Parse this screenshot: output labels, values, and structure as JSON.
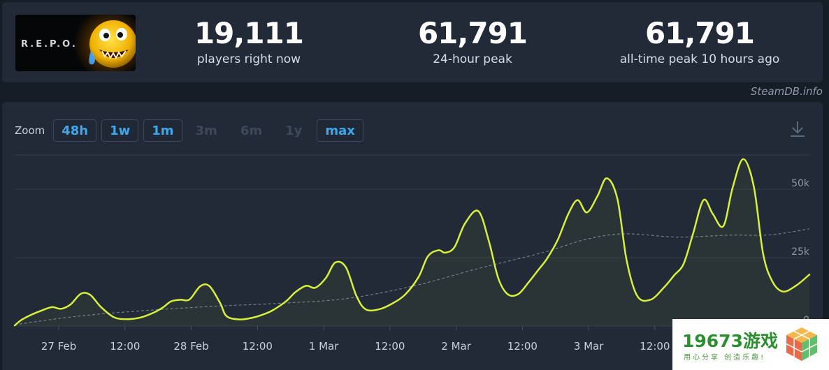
{
  "game": {
    "logo_text": "R.E.P.O."
  },
  "stats": [
    {
      "value": "19,111",
      "label": "players right now"
    },
    {
      "value": "61,791",
      "label": "24-hour peak"
    },
    {
      "value": "61,791",
      "label": "all-time peak 10 hours ago"
    }
  ],
  "source": "SteamDB.info",
  "zoom": {
    "label": "Zoom",
    "options": [
      {
        "label": "48h",
        "enabled": true
      },
      {
        "label": "1w",
        "enabled": true
      },
      {
        "label": "1m",
        "enabled": true
      },
      {
        "label": "3m",
        "enabled": false
      },
      {
        "label": "6m",
        "enabled": false
      },
      {
        "label": "1y",
        "enabled": false
      },
      {
        "label": "max",
        "enabled": true
      }
    ]
  },
  "chart_data": {
    "type": "line",
    "x_tick_labels": [
      "27 Feb",
      "12:00",
      "28 Feb",
      "12:00",
      "1 Mar",
      "12:00",
      "2 Mar",
      "12:00",
      "3 Mar",
      "12:00"
    ],
    "y_tick_labels": [
      "50k",
      "25k",
      "0"
    ],
    "ylim": [
      0,
      62500
    ],
    "xlim": [
      0,
      6.0
    ],
    "grid": true,
    "series": [
      {
        "color": "#d8f03a",
        "x": [
          0,
          0.05,
          0.12,
          0.2,
          0.28,
          0.35,
          0.42,
          0.5,
          0.57,
          0.65,
          0.75,
          0.85,
          0.95,
          1.05,
          1.12,
          1.18,
          1.25,
          1.32,
          1.4,
          1.47,
          1.55,
          1.6,
          1.7,
          1.8,
          1.88,
          1.95,
          2.05,
          2.12,
          2.2,
          2.27,
          2.35,
          2.42,
          2.5,
          2.58,
          2.65,
          2.75,
          2.85,
          2.95,
          3.05,
          3.12,
          3.2,
          3.25,
          3.32,
          3.4,
          3.5,
          3.58,
          3.65,
          3.72,
          3.8,
          3.88,
          3.95,
          4.02,
          4.1,
          4.18,
          4.25,
          4.32,
          4.4,
          4.47,
          4.55,
          4.62,
          4.7,
          4.8,
          4.9,
          4.98,
          5.05,
          5.12,
          5.2,
          5.27,
          5.35,
          5.42,
          5.5,
          5.58,
          5.65,
          5.72,
          5.8,
          5.9,
          6.0
        ],
        "y": [
          200,
          2200,
          4000,
          5600,
          6900,
          6300,
          7800,
          11800,
          11400,
          7000,
          3200,
          2500,
          3100,
          4900,
          6800,
          9000,
          9600,
          9700,
          14500,
          14600,
          8500,
          3600,
          2400,
          3100,
          4300,
          5800,
          9100,
          12400,
          14700,
          14000,
          17600,
          23200,
          21500,
          11000,
          6100,
          6100,
          8200,
          11600,
          18000,
          25500,
          27700,
          26800,
          28800,
          37500,
          42000,
          31000,
          17600,
          11700,
          11600,
          16000,
          20300,
          24700,
          31500,
          41000,
          46000,
          41500,
          47500,
          54000,
          46500,
          24000,
          11000,
          9600,
          14000,
          18600,
          22700,
          33500,
          46000,
          41000,
          36500,
          50500,
          61000,
          51000,
          26500,
          16300,
          12600,
          14800,
          18800
        ]
      },
      {
        "style": "dashed",
        "color": "#8e99a6",
        "x": [
          0,
          0.5,
          1.0,
          1.5,
          2.0,
          2.5,
          3.0,
          3.5,
          4.0,
          4.3,
          4.6,
          5.0,
          5.4,
          5.7,
          6.0
        ],
        "y": [
          500,
          3700,
          5700,
          7200,
          8300,
          10000,
          14500,
          21000,
          27000,
          31500,
          33700,
          32500,
          33200,
          33300,
          35500
        ]
      }
    ]
  },
  "watermark": {
    "title": "19673游戏",
    "subtitle": "用心分享 创造乐趣!"
  }
}
